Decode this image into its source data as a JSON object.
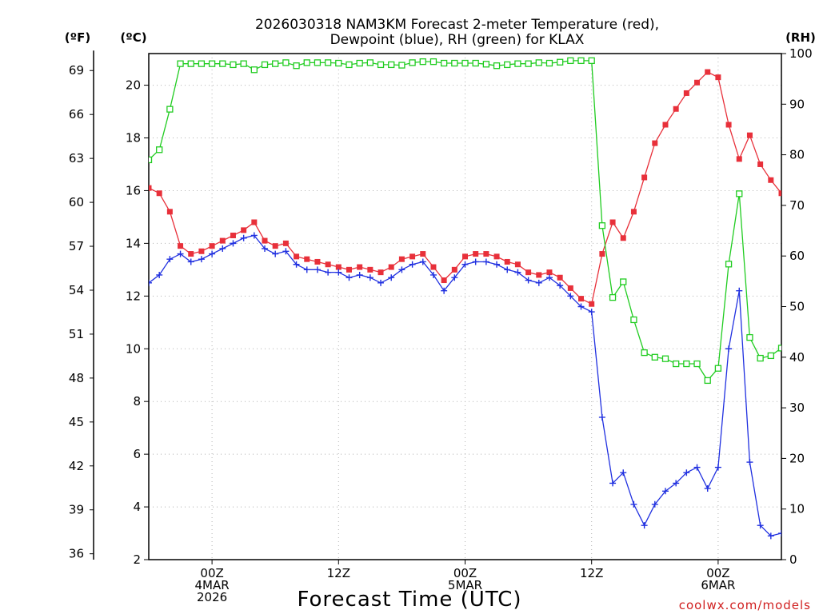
{
  "chart_data": {
    "type": "line",
    "title": [
      "2026030318 NAM3KM Forecast 2-meter Temperature (red),",
      "Dewpoint (blue), RH (green) for KLAX"
    ],
    "xlabel": "Forecast Time (UTC)",
    "credit": "coolwx.com/models",
    "units": {
      "fahrenheit": "(ºF)",
      "celsius": "(ºC)",
      "rh": "(RH)"
    },
    "x_hours_range": [
      0,
      60
    ],
    "x_ticks": [
      {
        "hour": 6,
        "lines": [
          "00Z",
          "4MAR",
          "2026"
        ]
      },
      {
        "hour": 18,
        "lines": [
          "12Z"
        ]
      },
      {
        "hour": 30,
        "lines": [
          "00Z",
          "5MAR"
        ]
      },
      {
        "hour": 42,
        "lines": [
          "12Z"
        ]
      },
      {
        "hour": 54,
        "lines": [
          "00Z",
          "6MAR"
        ]
      }
    ],
    "y_celsius_range": [
      2,
      21.2
    ],
    "y_celsius_ticks": [
      2,
      4,
      6,
      8,
      10,
      12,
      14,
      16,
      18,
      20
    ],
    "y_fahrenheit_ticks": [
      36,
      39,
      42,
      45,
      48,
      51,
      54,
      57,
      60,
      63,
      66,
      69
    ],
    "y_rh_range": [
      0,
      100
    ],
    "y_rh_ticks": [
      0,
      10,
      20,
      30,
      40,
      50,
      60,
      70,
      80,
      90,
      100
    ],
    "series": [
      {
        "name": "Temperature",
        "color": "#e8303a",
        "marker": "filled-square",
        "axis": "celsius",
        "x": [
          0,
          1,
          2,
          3,
          4,
          5,
          6,
          7,
          8,
          9,
          10,
          11,
          12,
          13,
          14,
          15,
          16,
          17,
          18,
          19,
          20,
          21,
          22,
          23,
          24,
          25,
          26,
          27,
          28,
          29,
          30,
          31,
          32,
          33,
          34,
          35,
          36,
          37,
          38,
          39,
          40,
          41,
          42,
          43,
          44,
          45,
          46,
          47,
          48,
          49,
          50,
          51,
          52,
          53,
          54,
          55,
          56,
          57,
          58,
          59,
          60
        ],
        "values": [
          16.1,
          15.9,
          15.2,
          13.9,
          13.6,
          13.7,
          13.9,
          14.1,
          14.3,
          14.5,
          14.8,
          14.1,
          13.9,
          14.0,
          13.5,
          13.4,
          13.3,
          13.2,
          13.1,
          13.0,
          13.1,
          13.0,
          12.9,
          13.1,
          13.4,
          13.5,
          13.6,
          13.1,
          12.6,
          13.0,
          13.5,
          13.6,
          13.6,
          13.5,
          13.3,
          13.2,
          12.9,
          12.8,
          12.9,
          12.7,
          12.3,
          11.9,
          11.7,
          13.6,
          14.8,
          14.2,
          15.2,
          16.5,
          17.8,
          18.5,
          19.1,
          19.7,
          20.1,
          20.5,
          20.3,
          18.5,
          17.2,
          18.1,
          17.0,
          16.4,
          15.9
        ]
      },
      {
        "name": "Dewpoint",
        "color": "#2030e0",
        "marker": "plus",
        "axis": "celsius",
        "x": [
          0,
          1,
          2,
          3,
          4,
          5,
          6,
          7,
          8,
          9,
          10,
          11,
          12,
          13,
          14,
          15,
          16,
          17,
          18,
          19,
          20,
          21,
          22,
          23,
          24,
          25,
          26,
          27,
          28,
          29,
          30,
          31,
          32,
          33,
          34,
          35,
          36,
          37,
          38,
          39,
          40,
          41,
          42,
          43,
          44,
          45,
          46,
          47,
          48,
          49,
          50,
          51,
          52,
          53,
          54,
          55,
          56,
          57,
          58,
          59,
          60
        ],
        "values": [
          12.5,
          12.8,
          13.4,
          13.6,
          13.3,
          13.4,
          13.6,
          13.8,
          14.0,
          14.2,
          14.3,
          13.8,
          13.6,
          13.7,
          13.2,
          13.0,
          13.0,
          12.9,
          12.9,
          12.7,
          12.8,
          12.7,
          12.5,
          12.7,
          13.0,
          13.2,
          13.3,
          12.8,
          12.2,
          12.7,
          13.2,
          13.3,
          13.3,
          13.2,
          13.0,
          12.9,
          12.6,
          12.5,
          12.7,
          12.4,
          12.0,
          11.6,
          11.4,
          7.4,
          4.9,
          5.3,
          4.1,
          3.3,
          4.1,
          4.6,
          4.9,
          5.3,
          5.5,
          4.7,
          5.5,
          10.0,
          12.2,
          5.7,
          3.3,
          2.9,
          3.0
        ]
      },
      {
        "name": "RH",
        "color": "#20cc20",
        "marker": "open-square",
        "axis": "rh",
        "x": [
          0,
          1,
          2,
          3,
          4,
          5,
          6,
          7,
          8,
          9,
          10,
          11,
          12,
          13,
          14,
          15,
          16,
          17,
          18,
          19,
          20,
          21,
          22,
          23,
          24,
          25,
          26,
          27,
          28,
          29,
          30,
          31,
          32,
          33,
          34,
          35,
          36,
          37,
          38,
          39,
          40,
          41,
          42,
          43,
          44,
          45,
          46,
          47,
          48,
          49,
          50,
          51,
          52,
          53,
          54,
          55,
          56,
          57,
          58,
          59,
          60
        ],
        "values": [
          79,
          81,
          89,
          98,
          98,
          98,
          98,
          98,
          97.8,
          98,
          96.8,
          97.8,
          98,
          98.2,
          97.6,
          98.2,
          98.2,
          98.2,
          98.1,
          97.8,
          98.1,
          98.2,
          97.8,
          97.8,
          97.7,
          98.2,
          98.4,
          98.4,
          98.1,
          98.1,
          98.1,
          98.1,
          97.9,
          97.6,
          97.8,
          98.0,
          98.0,
          98.2,
          98.1,
          98.3,
          98.6,
          98.6,
          98.6,
          66,
          51.8,
          54.9,
          47.4,
          40.9,
          40.0,
          39.7,
          38.7,
          38.7,
          38.7,
          35.4,
          37.8,
          58.4,
          72.3,
          43.9,
          39.8,
          40.3,
          41.8
        ]
      }
    ]
  }
}
